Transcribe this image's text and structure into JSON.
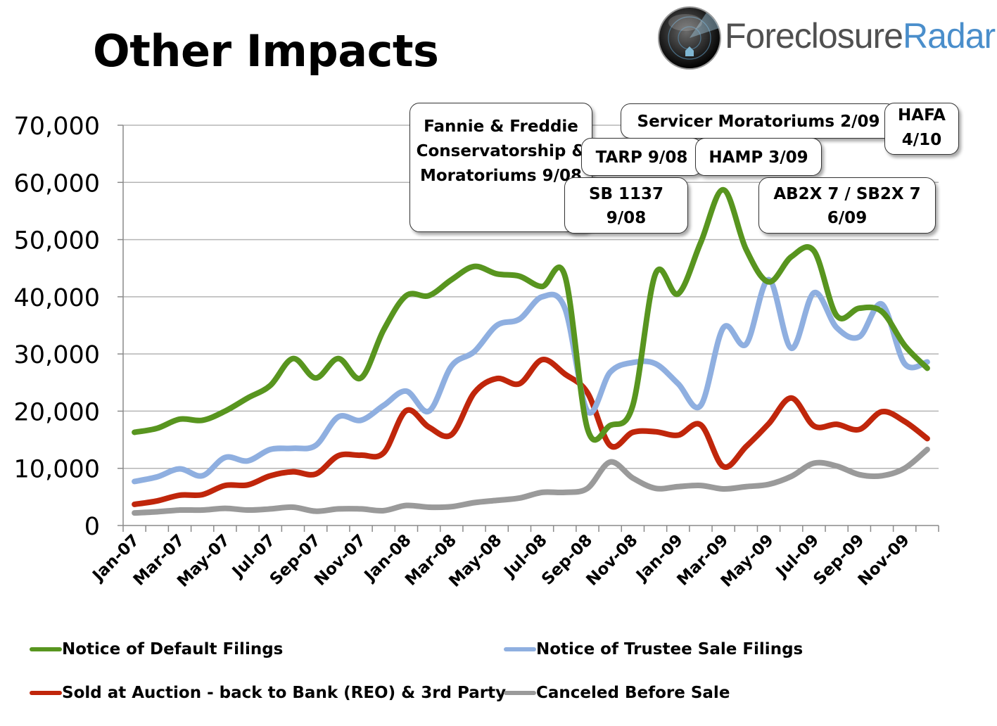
{
  "page": {
    "title": "Other Impacts"
  },
  "logo": {
    "name": "ForeclosureRadar-logo",
    "part1": "Foreclosure",
    "part2": "Radar"
  },
  "colors": {
    "nod": "#58951f",
    "nts": "#8fafe0",
    "sold": "#c0260b",
    "canceled": "#9a9a9a"
  },
  "annotations": [
    {
      "id": "fannie",
      "text": "Fannie & Freddie Conservatorship & Moratoriums 9/08"
    },
    {
      "id": "tarp",
      "text": "TARP 9/08"
    },
    {
      "id": "sb1137",
      "text": "SB 1137 9/08"
    },
    {
      "id": "hamp",
      "text": "HAMP 3/09"
    },
    {
      "id": "servicer",
      "text": "Servicer Moratoriums 2/09"
    },
    {
      "id": "hafa",
      "text": "HAFA 4/10"
    },
    {
      "id": "ab2x7",
      "text": "AB2X 7 / SB2X 7 6/09"
    }
  ],
  "chart_data": {
    "type": "line",
    "title": "Other Impacts",
    "xlabel": "",
    "ylabel": "",
    "ylim": [
      0,
      70000
    ],
    "yticks": [
      0,
      10000,
      20000,
      30000,
      40000,
      50000,
      60000,
      70000
    ],
    "ytick_labels": [
      "0",
      "10,000",
      "20,000",
      "30,000",
      "40,000",
      "50,000",
      "60,000",
      "70,000"
    ],
    "x": [
      "Jan-07",
      "Feb-07",
      "Mar-07",
      "Apr-07",
      "May-07",
      "Jun-07",
      "Jul-07",
      "Aug-07",
      "Sep-07",
      "Oct-07",
      "Nov-07",
      "Dec-07",
      "Jan-08",
      "Feb-08",
      "Mar-08",
      "Apr-08",
      "May-08",
      "Jun-08",
      "Jul-08",
      "Aug-08",
      "Sep-08",
      "Oct-08",
      "Nov-08",
      "Dec-08",
      "Jan-09",
      "Feb-09",
      "Mar-09",
      "Apr-09",
      "May-09",
      "Jun-09",
      "Jul-09",
      "Aug-09",
      "Sep-09",
      "Oct-09",
      "Nov-09",
      "Dec-09"
    ],
    "xtick_labels": [
      "Jan-07",
      "Mar-07",
      "May-07",
      "Jul-07",
      "Sep-07",
      "Nov-07",
      "Jan-08",
      "Mar-08",
      "May-08",
      "Jul-08",
      "Sep-08",
      "Nov-08",
      "Jan-09",
      "Mar-09",
      "May-09",
      "Jul-09",
      "Sep-09",
      "Nov-09"
    ],
    "grid": true,
    "legend": "bottom",
    "series": [
      {
        "name": "Notice of Default Filings",
        "color": "#58951f",
        "values": [
          16300,
          17000,
          18600,
          18400,
          20000,
          22300,
          24500,
          29200,
          25800,
          29200,
          25800,
          34200,
          40200,
          40200,
          43000,
          45300,
          44000,
          43600,
          41800,
          43700,
          16900,
          17500,
          21000,
          44000,
          40500,
          49500,
          58700,
          48300,
          42600,
          47000,
          48000,
          36700,
          38000,
          37400,
          31500,
          27500
        ]
      },
      {
        "name": "Notice of Trustee Sale Filings",
        "color": "#8fafe0",
        "values": [
          7700,
          8500,
          9900,
          8700,
          11900,
          11300,
          13300,
          13500,
          14000,
          19000,
          18400,
          21000,
          23500,
          20000,
          27900,
          30400,
          35000,
          36100,
          40000,
          38000,
          20000,
          26800,
          28500,
          28300,
          24800,
          21000,
          34600,
          31700,
          43000,
          31000,
          40700,
          34600,
          33000,
          38700,
          28300,
          28600
        ]
      },
      {
        "name": "Sold at Auction - back to Bank (REO) & 3rd Party",
        "color": "#c0260b",
        "values": [
          3700,
          4300,
          5300,
          5400,
          7000,
          7100,
          8700,
          9400,
          9000,
          12200,
          12300,
          12700,
          20100,
          17200,
          15900,
          23200,
          25700,
          24800,
          29000,
          26500,
          23200,
          14000,
          16300,
          16400,
          15800,
          17600,
          10300,
          13800,
          17800,
          22300,
          17400,
          17700,
          16800,
          19900,
          18200,
          15200
        ]
      },
      {
        "name": "Canceled Before Sale",
        "color": "#9a9a9a",
        "values": [
          2200,
          2400,
          2700,
          2700,
          3000,
          2700,
          2900,
          3200,
          2500,
          2900,
          2900,
          2600,
          3500,
          3200,
          3300,
          4000,
          4400,
          4800,
          5800,
          5800,
          6500,
          11100,
          8300,
          6500,
          6800,
          7000,
          6400,
          6800,
          7200,
          8600,
          10900,
          10400,
          8900,
          8700,
          10000,
          13300
        ]
      }
    ]
  }
}
